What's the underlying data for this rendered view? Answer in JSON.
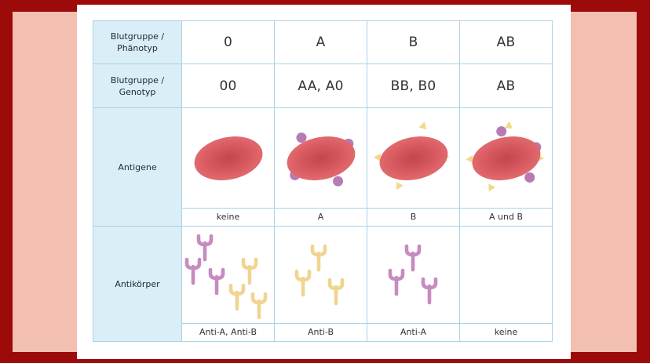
{
  "table": {
    "header_phenotype": "Blutgruppe /\nPhänotyp",
    "header_genotype": "Blutgruppe /\nGenotyp",
    "header_antigens": "Antigene",
    "header_antibodies": "Antikörper",
    "columns": [
      {
        "phenotype": "0",
        "genotype": "00",
        "antigen_caption": "keine",
        "antibody_caption": "Anti-A, Anti-B"
      },
      {
        "phenotype": "A",
        "genotype": "AA, A0",
        "antigen_caption": "A",
        "antibody_caption": "Anti-B"
      },
      {
        "phenotype": "B",
        "genotype": "BB, B0",
        "antigen_caption": "B",
        "antibody_caption": "Anti-A"
      },
      {
        "phenotype": "AB",
        "genotype": "AB",
        "antigen_caption": "A und B",
        "antibody_caption": "keine"
      }
    ]
  },
  "colors": {
    "background": "#9d0a0a",
    "side_bands": "#f3bfb1",
    "header_cell": "#d9eef7",
    "border": "#a9d3e6",
    "cell_body": "#e0676b",
    "cell_center": "#c24650",
    "antigen_a": "#b77bb1",
    "antigen_b": "#f3d889",
    "antibody_anti_a": "#c78bbf",
    "antibody_anti_b": "#f1d492"
  },
  "icons": {
    "red_blood_cell": "red-blood-cell-icon",
    "antigen_a": "antigen-a-dot-icon",
    "antigen_b": "antigen-b-spike-icon",
    "antibody": "antibody-y-icon"
  }
}
